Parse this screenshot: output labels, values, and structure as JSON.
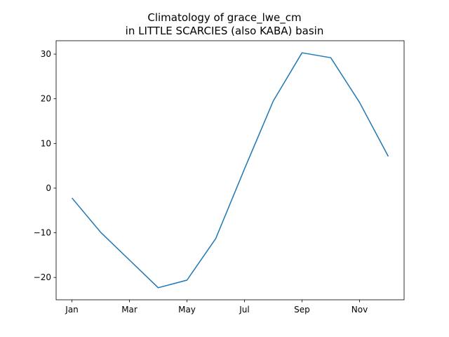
{
  "chart_data": {
    "type": "line",
    "title": "Climatology of grace_lwe_cm",
    "subtitle": "in LITTLE SCARCIES (also KABA) basin",
    "xlabel": "",
    "ylabel": "",
    "x": [
      "Jan",
      "Feb",
      "Mar",
      "Apr",
      "May",
      "Jun",
      "Jul",
      "Aug",
      "Sep",
      "Oct",
      "Nov",
      "Dec"
    ],
    "x_tick_labels": [
      "Jan",
      "Mar",
      "May",
      "Jul",
      "Sep",
      "Nov"
    ],
    "series": [
      {
        "values": [
          -2.2,
          -9.9,
          -16.1,
          -22.3,
          -20.6,
          -11.3,
          4.3,
          19.5,
          30.3,
          29.2,
          19.2,
          7.1
        ]
      }
    ],
    "ylim": [
      -25,
      33
    ],
    "y_ticks": [
      -20,
      -10,
      0,
      10,
      20,
      30
    ],
    "line_color": "#1f77b4",
    "grid": false,
    "legend": "none"
  }
}
